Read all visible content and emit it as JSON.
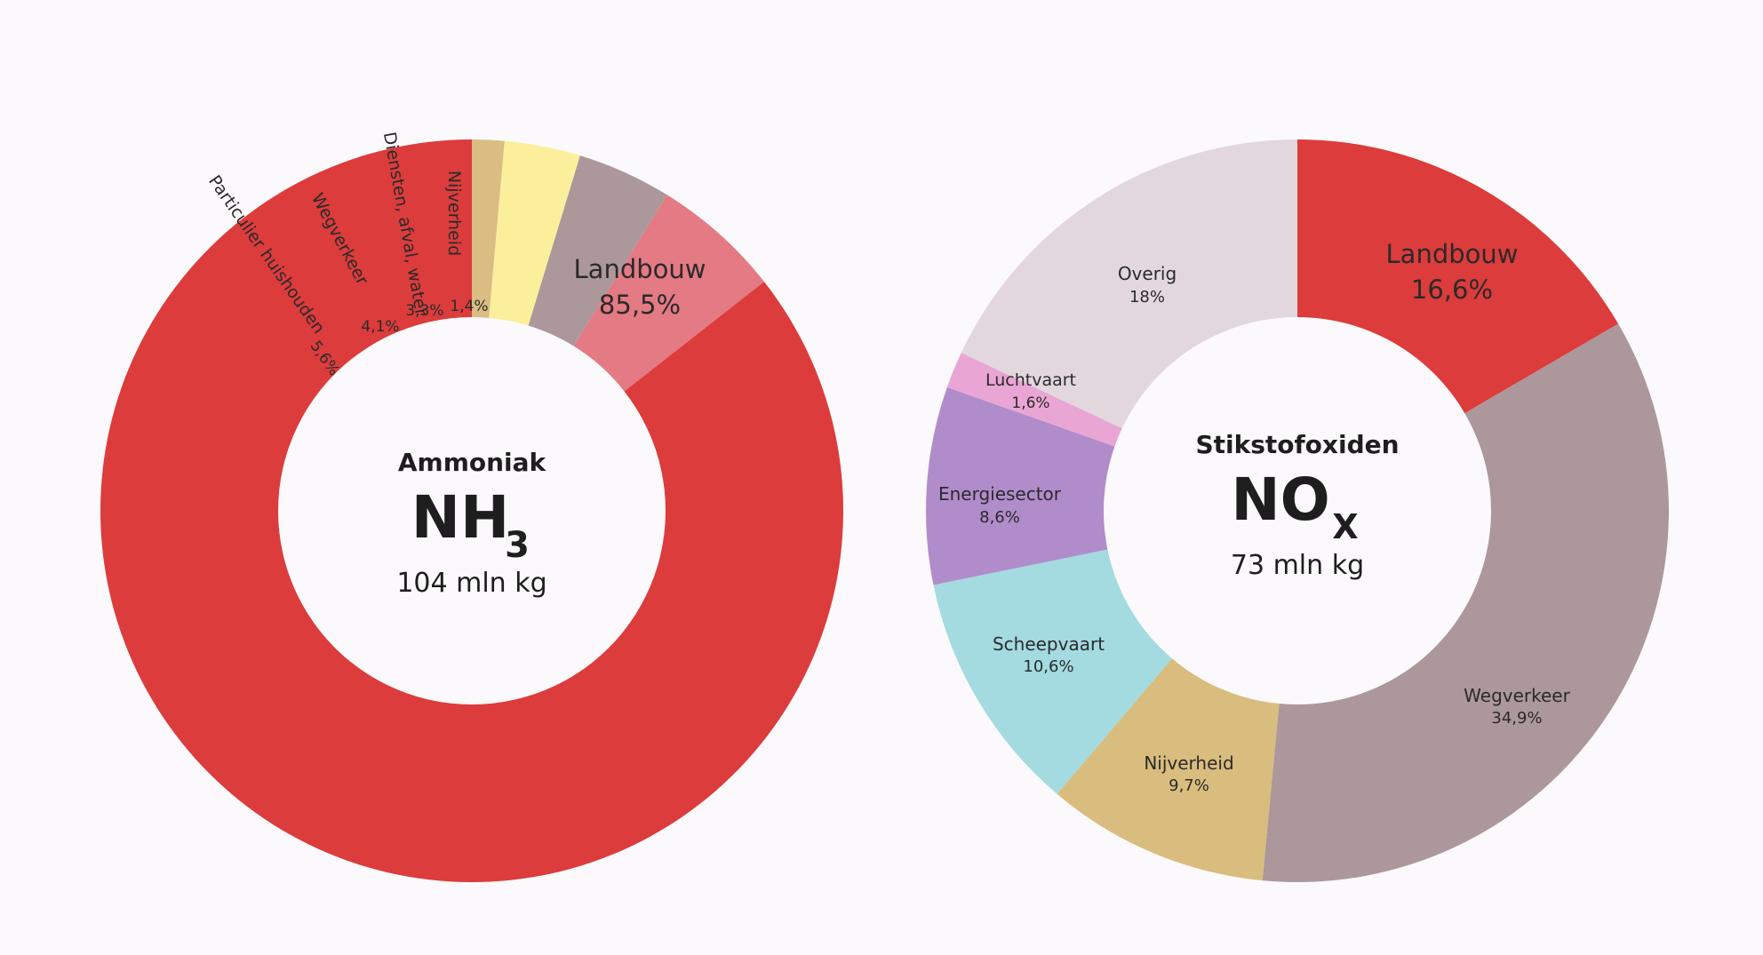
{
  "chart_data": [
    {
      "type": "pie",
      "title": "Ammoniak",
      "formula": "NH",
      "formula_sub": "3",
      "total": "104 mln kg",
      "slices": [
        {
          "name": "Landbouw",
          "value": 85.5,
          "value_label": "85,5%",
          "color": "#dc3c3c"
        },
        {
          "name": "Particulier huishouden",
          "value": 5.6,
          "value_label": "5,6%",
          "color": "#e47a84"
        },
        {
          "name": "Wegverkeer",
          "value": 4.1,
          "value_label": "4,1%",
          "color": "#ac979b"
        },
        {
          "name": "Diensten, afval, water",
          "value": 3.3,
          "value_label": "3,3%",
          "color": "#fbef9b"
        },
        {
          "name": "Nijverheid",
          "value": 1.4,
          "value_label": "1,4%",
          "color": "#d9bd83"
        }
      ]
    },
    {
      "type": "pie",
      "title": "Stikstofoxiden",
      "formula": "NO",
      "formula_sub": "X",
      "total": "73 mln kg",
      "slices": [
        {
          "name": "Landbouw",
          "value": 16.6,
          "value_label": "16,6%",
          "color": "#dc3c3c"
        },
        {
          "name": "Wegverkeer",
          "value": 34.9,
          "value_label": "34,9%",
          "color": "#ac979b"
        },
        {
          "name": "Nijverheid",
          "value": 9.7,
          "value_label": "9,7%",
          "color": "#d9bd7e"
        },
        {
          "name": "Scheepvaart",
          "value": 10.6,
          "value_label": "10,6%",
          "color": "#a3dbe1"
        },
        {
          "name": "Energiesector",
          "value": 8.6,
          "value_label": "8,6%",
          "color": "#b18ccb"
        },
        {
          "name": "Luchtvaart",
          "value": 1.6,
          "value_label": "1,6%",
          "color": "#e9a6d4"
        },
        {
          "name": "Overig",
          "value": 18,
          "value_label": "18%",
          "color": "#e3d7de"
        }
      ]
    }
  ]
}
